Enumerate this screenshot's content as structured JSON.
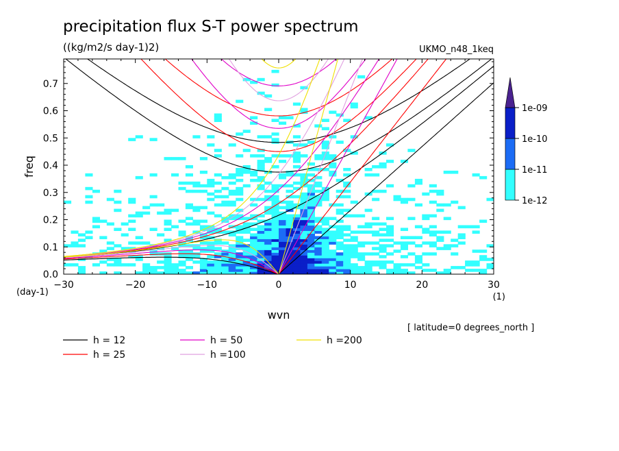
{
  "chart_data": {
    "type": "heatmap",
    "title": "precipitation flux S-T power spectrum",
    "subtitle": "((kg/m2/s day-1)2)",
    "dataset": "UKMO_n48_1keq",
    "xlabel": "wvn",
    "ylabel": "freq",
    "x_unit": "(1)",
    "y_unit": "(day-1)",
    "xlim": [
      -30,
      30
    ],
    "ylim": [
      0,
      0.79
    ],
    "xticks": [
      -30,
      -20,
      -10,
      0,
      10,
      20,
      30
    ],
    "yticks": [
      0.0,
      0.1,
      0.2,
      0.3,
      0.4,
      0.5,
      0.6,
      0.7
    ],
    "colorbar": {
      "levels": [
        "1e-12",
        "1e-11",
        "1e-10",
        "1e-09"
      ],
      "colors": [
        "#33ffff",
        "#1c6cf5",
        "#0a1fc8",
        "#4a2290"
      ]
    },
    "legend": [
      {
        "label": "h = 12",
        "h": 12,
        "color": "#000000"
      },
      {
        "label": "h = 25",
        "h": 25,
        "color": "#ff0000"
      },
      {
        "label": "h = 50",
        "h": 50,
        "color": "#e000c8"
      },
      {
        "label": "h =100",
        "h": 100,
        "color": "#e0a0e0"
      },
      {
        "label": "h =200",
        "h": 200,
        "color": "#f0e000"
      }
    ],
    "note": "[ latitude=0 degrees_north ]"
  }
}
